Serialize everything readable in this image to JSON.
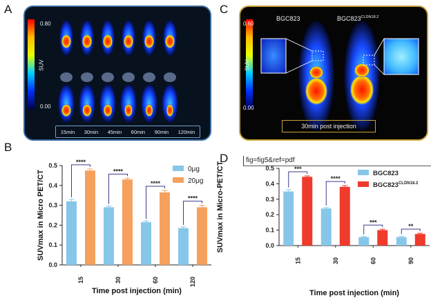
{
  "panels": {
    "A": "A",
    "B": "B",
    "C": "C",
    "D": "D"
  },
  "panelA": {
    "scale_label": "SUV",
    "scale_max": "0.80",
    "scale_min": "0.00",
    "times": [
      "15min",
      "30min",
      "45min",
      "60min",
      "90min",
      "120min"
    ]
  },
  "panelC": {
    "scale_label": "SUV",
    "scale_max": "0.60",
    "scale_min": "0.00",
    "header_left": "BGC823",
    "header_right_base": "BGC823",
    "header_right_sup": "CLDN18.2",
    "caption": "30min post injection"
  },
  "fig_ref": "fig=fig5&ref=pdf",
  "colors": {
    "blue": "#86c7e9",
    "orange": "#f5a05c",
    "red": "#ef3a2c",
    "bracket": "#3a3a8a"
  },
  "chart_data": [
    {
      "type": "bar",
      "panel": "B",
      "categories": [
        "15",
        "30",
        "60",
        "120"
      ],
      "series": [
        {
          "name": "0μg",
          "values": [
            0.32,
            0.29,
            0.215,
            0.185
          ],
          "errors": [
            0.01,
            0.006,
            0.006,
            0.006
          ],
          "color": "#86c7e9"
        },
        {
          "name": "20μg",
          "values": [
            0.475,
            0.43,
            0.365,
            0.29
          ],
          "errors": [
            0.008,
            0.006,
            0.01,
            0.01
          ],
          "color": "#f5a05c"
        }
      ],
      "significance": [
        "****",
        "****",
        "****",
        "****"
      ],
      "xlabel": "Time post injection (min)",
      "ylabel": "SUVmax in Micro PET/CT",
      "ylim": [
        0,
        0.5
      ],
      "yticks": [
        "0.0",
        "0.1",
        "0.2",
        "0.3",
        "0.4",
        "0.5"
      ],
      "legend_position": "top-right"
    },
    {
      "type": "bar",
      "panel": "D",
      "categories": [
        "15",
        "30",
        "60",
        "90"
      ],
      "series": [
        {
          "name": "BGC823",
          "values": [
            0.35,
            0.24,
            0.055,
            0.055
          ],
          "errors": [
            0.012,
            0.006,
            0.004,
            0.005
          ],
          "color": "#86c7e9"
        },
        {
          "name": "BGC823",
          "name_sup": "CLDN18.2",
          "values": [
            0.445,
            0.38,
            0.1,
            0.075
          ],
          "errors": [
            0.006,
            0.008,
            0.006,
            0.005
          ],
          "color": "#ef3a2c"
        }
      ],
      "significance": [
        "***",
        "****",
        "***",
        "**"
      ],
      "xlabel": "Time post injection (min)",
      "ylabel": "SUVmax in Micro-PET/CT",
      "ylim": [
        0,
        0.5
      ],
      "yticks": [
        "0.0",
        "0.1",
        "0.2",
        "0.3",
        "0.4",
        "0.5"
      ],
      "legend_position": "top-right"
    }
  ]
}
